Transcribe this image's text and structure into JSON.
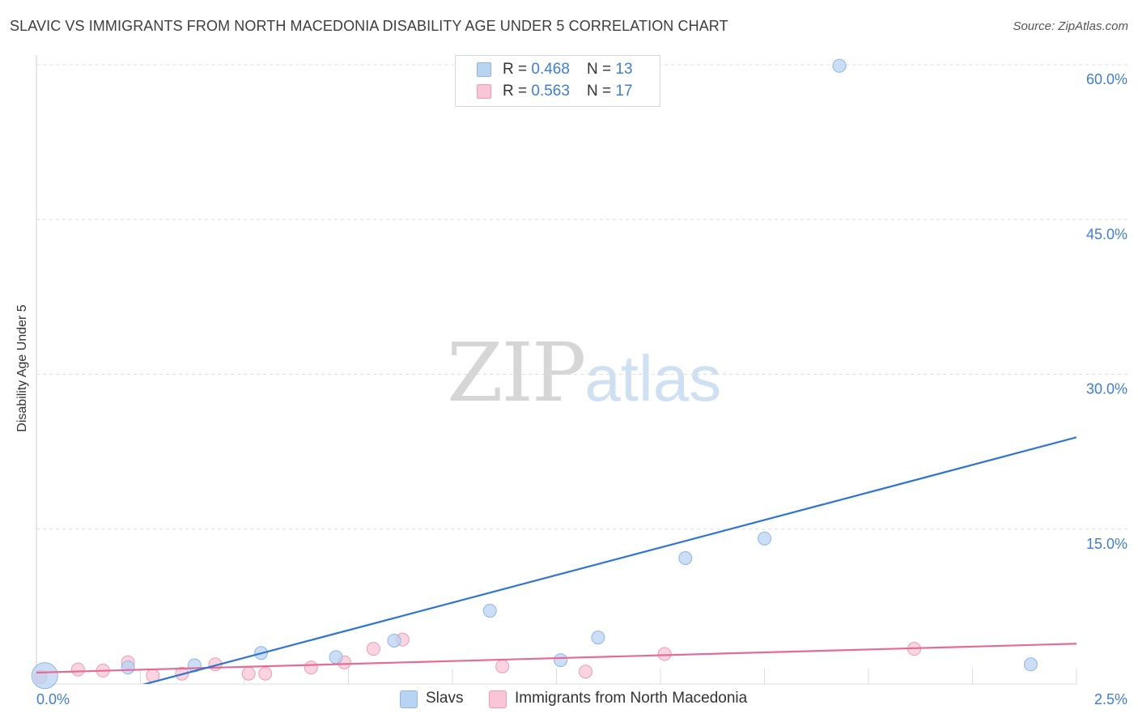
{
  "title": "SLAVIC VS IMMIGRANTS FROM NORTH MACEDONIA DISABILITY AGE UNDER 5 CORRELATION CHART",
  "source": "Source: ZipAtlas.com",
  "watermark": {
    "zip": "ZIP",
    "atlas": "atlas"
  },
  "legend": {
    "rows": [
      {
        "r_label": "R = ",
        "r_value": "0.468",
        "n_label": "N = ",
        "n_value": "13"
      },
      {
        "r_label": "R = ",
        "r_value": "0.563",
        "n_label": "N = ",
        "n_value": "17"
      }
    ]
  },
  "bottom_legend": [
    "Slavs",
    "Immigrants from North Macedonia"
  ],
  "colors": {
    "slavs_fill": "#b9d3f2",
    "slavs_stroke": "#8fb4e6",
    "slavs_line": "#2f74d0",
    "mac_fill": "#f8c6d6",
    "mac_stroke": "#ee9bb6",
    "mac_line": "#e56b95",
    "grid": "#dddddd",
    "axis_text": "#3f7dd0"
  },
  "chart_data": {
    "type": "scatter",
    "title": "SLAVIC VS IMMIGRANTS FROM NORTH MACEDONIA DISABILITY AGE UNDER 5 CORRELATION CHART",
    "xlabel": "",
    "ylabel": "Disability Age Under 5",
    "xlim": [
      0,
      2.5
    ],
    "ylim": [
      0,
      60
    ],
    "x_tick_labels": [
      "0.0%",
      "2.5%"
    ],
    "y_ticks": [
      15,
      30,
      45,
      60
    ],
    "y_tick_labels": [
      "15.0%",
      "30.0%",
      "45.0%",
      "60.0%"
    ],
    "series": [
      {
        "name": "Slavs",
        "r": 0.468,
        "n": 13,
        "points": [
          {
            "x": 0.02,
            "y": 0.8,
            "big": true
          },
          {
            "x": 0.22,
            "y": 1.6
          },
          {
            "x": 0.38,
            "y": 1.8
          },
          {
            "x": 0.54,
            "y": 3.0
          },
          {
            "x": 0.72,
            "y": 2.6
          },
          {
            "x": 0.86,
            "y": 4.2
          },
          {
            "x": 1.09,
            "y": 7.1
          },
          {
            "x": 1.26,
            "y": 2.3
          },
          {
            "x": 1.35,
            "y": 4.5
          },
          {
            "x": 1.56,
            "y": 12.2
          },
          {
            "x": 1.75,
            "y": 14.1
          },
          {
            "x": 1.93,
            "y": 59.9
          },
          {
            "x": 2.39,
            "y": 1.9
          }
        ],
        "trend": [
          {
            "x": 0.0,
            "y": -2.8
          },
          {
            "x": 2.5,
            "y": 23.9
          }
        ]
      },
      {
        "name": "Immigrants from North Macedonia",
        "r": 0.563,
        "n": 17,
        "points": [
          {
            "x": 0.01,
            "y": 0.7
          },
          {
            "x": 0.1,
            "y": 1.4
          },
          {
            "x": 0.16,
            "y": 1.3
          },
          {
            "x": 0.22,
            "y": 2.1
          },
          {
            "x": 0.28,
            "y": 0.8
          },
          {
            "x": 0.35,
            "y": 1.0
          },
          {
            "x": 0.43,
            "y": 1.9
          },
          {
            "x": 0.51,
            "y": 1.0
          },
          {
            "x": 0.55,
            "y": 1.0
          },
          {
            "x": 0.66,
            "y": 1.6
          },
          {
            "x": 0.74,
            "y": 2.1
          },
          {
            "x": 0.81,
            "y": 3.4
          },
          {
            "x": 0.88,
            "y": 4.3
          },
          {
            "x": 1.12,
            "y": 1.7
          },
          {
            "x": 1.32,
            "y": 1.2
          },
          {
            "x": 1.51,
            "y": 2.9
          },
          {
            "x": 2.11,
            "y": 3.4
          }
        ],
        "trend": [
          {
            "x": 0.0,
            "y": 1.1
          },
          {
            "x": 2.5,
            "y": 3.9
          }
        ]
      }
    ]
  }
}
